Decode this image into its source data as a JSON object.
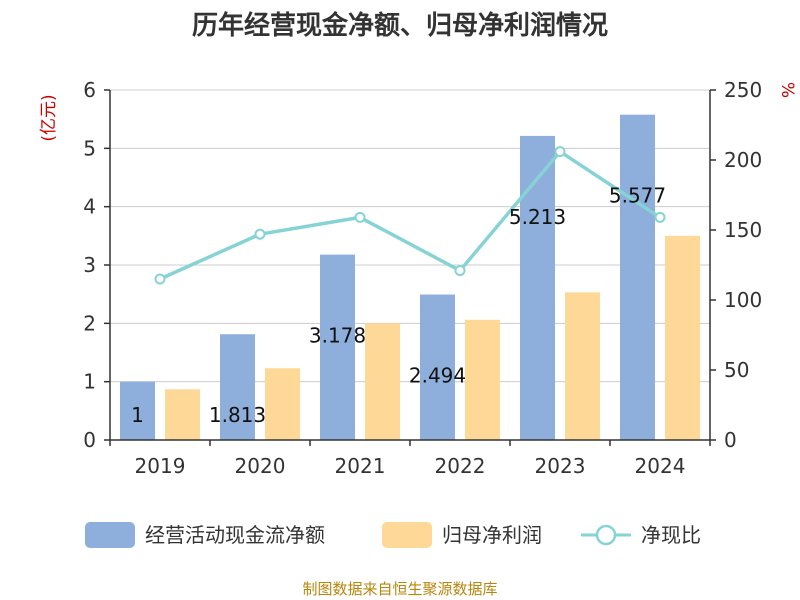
{
  "chart_data": {
    "type": "bar",
    "title": "历年经营现金净额、归母净利润情况",
    "categories": [
      "2019",
      "2020",
      "2021",
      "2022",
      "2023",
      "2024"
    ],
    "series": [
      {
        "name": "经营活动现金流净额",
        "type": "bar",
        "axis": "left",
        "color": "#8eaedc",
        "values": [
          1.0,
          1.813,
          3.178,
          2.494,
          5.213,
          5.577
        ],
        "data_labels": [
          "1",
          "1.813",
          "3.178",
          "2.494",
          "5.213",
          "5.577"
        ]
      },
      {
        "name": "归母净利润",
        "type": "bar",
        "axis": "left",
        "color": "#fed897",
        "values": [
          0.87,
          1.23,
          2.0,
          2.06,
          2.53,
          3.5
        ]
      },
      {
        "name": "净现比",
        "type": "line",
        "axis": "right",
        "color": "#86d3d6",
        "values": [
          115,
          147,
          159,
          121,
          206,
          159
        ]
      }
    ],
    "y_left": {
      "unit": "(亿元)",
      "min": 0,
      "max": 6,
      "ticks": [
        "0",
        "1",
        "2",
        "3",
        "4",
        "5",
        "6"
      ]
    },
    "y_right": {
      "unit": "%",
      "min": 0,
      "max": 250,
      "ticks": [
        "0",
        "50",
        "100",
        "150",
        "200",
        "250"
      ]
    },
    "grid": true,
    "legend_position": "bottom"
  },
  "source_text": "制图数据来自恒生聚源数据库"
}
